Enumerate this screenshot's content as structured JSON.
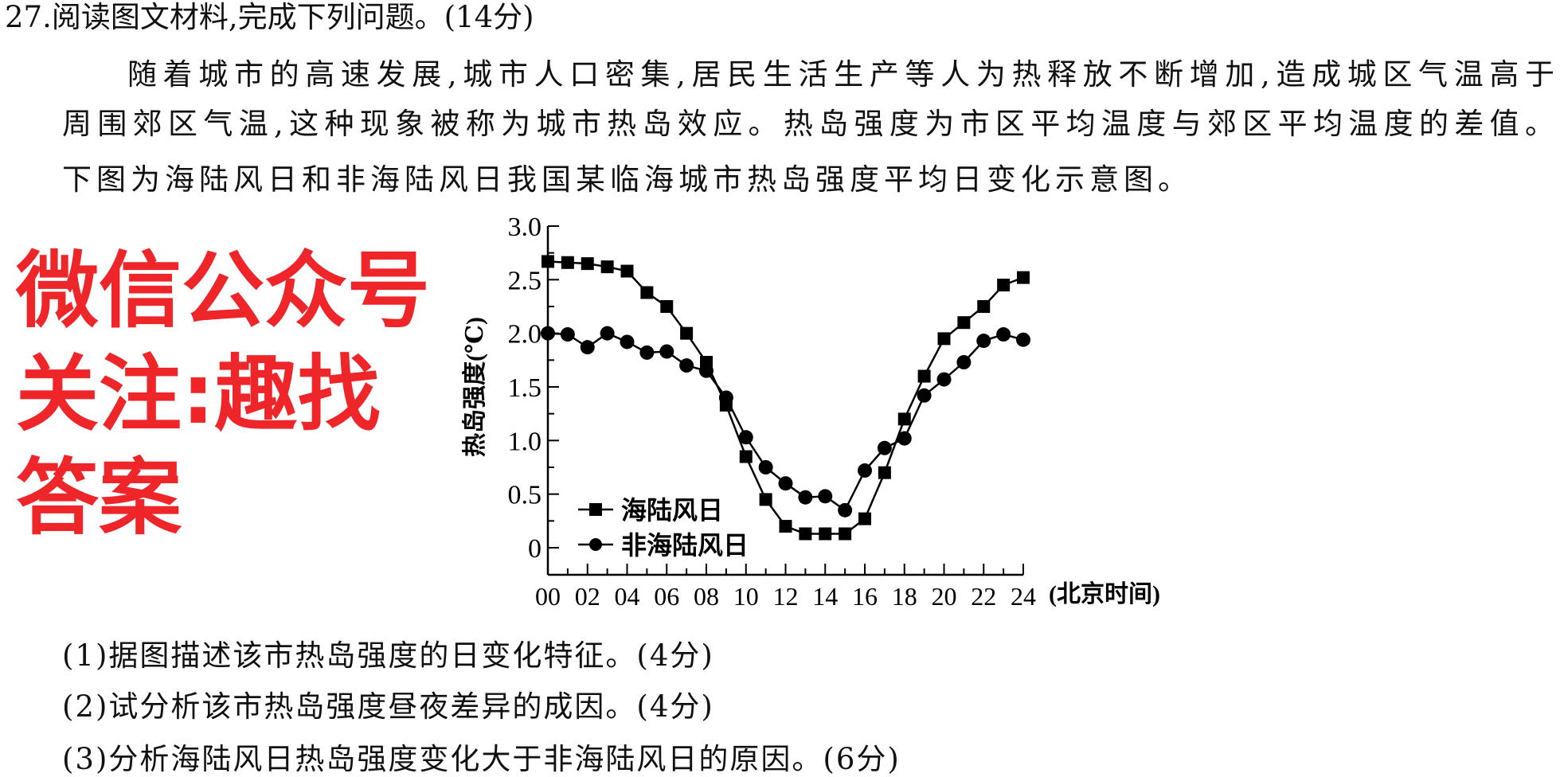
{
  "question": {
    "heading": "27.阅读图文材料,完成下列问题。(14分)",
    "paragraph_lines": [
      "随着城市的高速发展,城市人口密集,居民生活生产等人为热释放不断增加,造成城区气温高于",
      "周围郊区气温,这种现象被称为城市热岛效应。热岛强度为市区平均温度与郊区平均温度的差值。",
      "下图为海陆风日和非海陆风日我国某临海城市热岛强度平均日变化示意图。"
    ],
    "sub_questions": [
      "(1)据图描述该市热岛强度的日变化特征。(4分)",
      "(2)试分析该市热岛强度昼夜差异的成因。(4分)",
      "(3)分析海陆风日热岛强度变化大于非海陆风日的原因。(6分)"
    ]
  },
  "watermark": {
    "text": "微信公众号关注:趣找答案",
    "color": "#ee2529"
  },
  "chart_data": {
    "type": "line",
    "title": "",
    "xlabel": "(北京时间)",
    "ylabel": "热岛强度(℃)",
    "xlim": [
      0,
      24
    ],
    "ylim": [
      0,
      3.0
    ],
    "x_tick_labels": [
      "00",
      "02",
      "04",
      "06",
      "08",
      "10",
      "12",
      "14",
      "16",
      "18",
      "20",
      "22",
      "24"
    ],
    "y_tick_labels": [
      "0",
      "0.5",
      "1.0",
      "1.5",
      "2.0",
      "2.5",
      "3.0"
    ],
    "grid": false,
    "legend_position": "bottom-left",
    "x": [
      0,
      1,
      2,
      3,
      4,
      5,
      6,
      7,
      8,
      9,
      10,
      11,
      12,
      13,
      14,
      15,
      16,
      17,
      18,
      19,
      20,
      21,
      22,
      23,
      24
    ],
    "series": [
      {
        "name": "海陆风日",
        "marker": "square",
        "values": [
          2.67,
          2.66,
          2.65,
          2.62,
          2.58,
          2.38,
          2.25,
          2.0,
          1.73,
          1.33,
          0.85,
          0.45,
          0.2,
          0.13,
          0.13,
          0.13,
          0.27,
          0.7,
          1.2,
          1.6,
          1.95,
          2.1,
          2.25,
          2.45,
          2.52
        ]
      },
      {
        "name": "非海陆风日",
        "marker": "circle",
        "values": [
          2.0,
          1.99,
          1.87,
          2.0,
          1.92,
          1.82,
          1.83,
          1.7,
          1.65,
          1.4,
          1.03,
          0.75,
          0.6,
          0.47,
          0.48,
          0.35,
          0.72,
          0.93,
          1.02,
          1.42,
          1.57,
          1.73,
          1.93,
          1.99,
          1.94
        ]
      }
    ]
  }
}
